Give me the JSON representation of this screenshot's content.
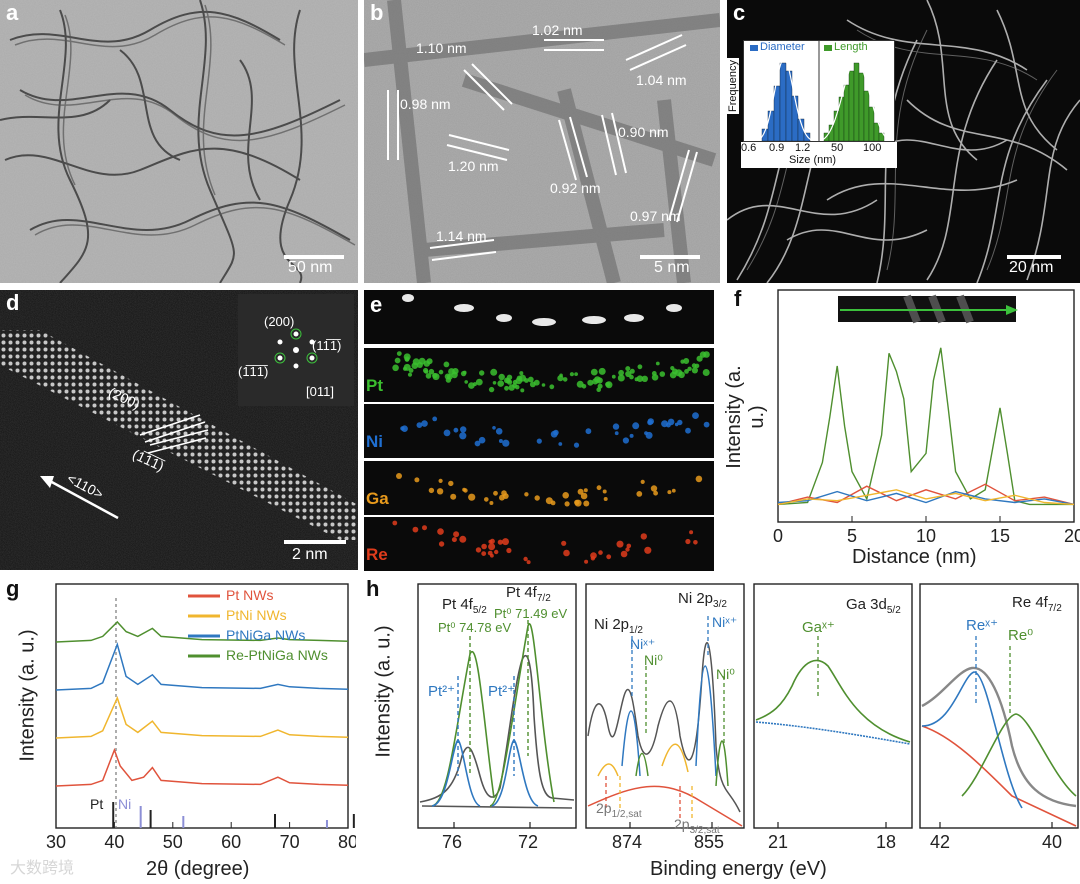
{
  "panels": {
    "a": {
      "label": "a",
      "scale": "50 nm"
    },
    "b": {
      "label": "b",
      "scale": "5 nm",
      "measurements": [
        "1.02 nm",
        "1.10 nm",
        "1.04 nm",
        "0.98 nm",
        "0.90 nm",
        "1.20 nm",
        "0.92 nm",
        "0.97 nm",
        "1.14 nm"
      ]
    },
    "c": {
      "label": "c",
      "scale": "20 nm",
      "inset": {
        "ylabel": "Frequency",
        "xlabel": "Size (nm)",
        "legend_diameter": "Diameter",
        "legend_length": "Length",
        "ticks_left": [
          "0.6",
          "0.9",
          "1.2"
        ],
        "ticks_right": [
          "50",
          "100"
        ],
        "color_diameter": "#2b6cc4",
        "color_length": "#3f9a2a"
      }
    },
    "d": {
      "label": "d",
      "scale": "2 nm",
      "fft": {
        "top": "(200)",
        "right": "(11̅1̅)",
        "left": "(1̅1̅1̅)",
        "zone": "[011]"
      },
      "annotations": {
        "plane1": "(200)",
        "plane2": "(1̅1̅1̅)",
        "direction": "<110>"
      }
    },
    "e": {
      "label": "e",
      "elements": [
        {
          "name": "Pt",
          "color": "#3bbf2f"
        },
        {
          "name": "Ni",
          "color": "#1f6fd1"
        },
        {
          "name": "Ga",
          "color": "#e89a1c"
        },
        {
          "name": "Re",
          "color": "#e03c1c"
        }
      ]
    },
    "f": {
      "label": "f",
      "xlabel": "Distance (nm)",
      "ylabel": "Intensity (a. u.)",
      "xticks": [
        "0",
        "5",
        "10",
        "15",
        "20"
      ]
    },
    "g": {
      "label": "g",
      "xlabel": "2θ (degree)",
      "ylabel": "Intensity (a. u.)",
      "xticks": [
        "30",
        "40",
        "50",
        "60",
        "70",
        "80"
      ],
      "legend": [
        {
          "name": "Pt NWs",
          "color": "#e0533c"
        },
        {
          "name": "PtNi NWs",
          "color": "#f0b62e"
        },
        {
          "name": "PtNiGa NWs",
          "color": "#2f78c0"
        },
        {
          "name": "Re-PtNiGa NWs",
          "color": "#4f8f2f"
        }
      ],
      "ref_pt": "Pt",
      "ref_ni": "Ni"
    },
    "h": {
      "label": "h",
      "xlabel": "Binding energy (eV)",
      "ylabel": "Intensity (a. u.)",
      "pt": {
        "title_a": "Pt 4f",
        "sub_a": "5/2",
        "title_b": "Pt 4f",
        "sub_b": "7/2",
        "peak1": "Pt⁰ 74.78 eV",
        "peak2": "Pt⁰ 71.49 eV",
        "pt2a": "Pt²⁺",
        "pt2b": "Pt²⁺",
        "xticks": [
          "76",
          "72"
        ]
      },
      "ni": {
        "title_a": "Ni 2p",
        "sub_a": "1/2",
        "title_b": "Ni 2p",
        "sub_b": "3/2",
        "nix1": "Niˣ⁺",
        "ni01": "Ni⁰",
        "nix2": "Niˣ⁺",
        "ni02": "Ni⁰",
        "sat1": "2p",
        "sat1sub": "1/2,sat",
        "sat2": "2p",
        "sat2sub": "3/2,sat",
        "xticks": [
          "874",
          "855"
        ]
      },
      "ga": {
        "title": "Ga 3d",
        "sub": "5/2",
        "peak": "Gaˣ⁺",
        "xticks": [
          "21",
          "18"
        ]
      },
      "re": {
        "title": "Re 4f",
        "sub": "7/2",
        "rex": "Reˣ⁺",
        "re0": "Re⁰",
        "xticks": [
          "42",
          "40"
        ]
      }
    }
  },
  "watermark": "大数跨境",
  "chart_data": [
    {
      "type": "line",
      "title": "",
      "xlabel": "Distance (nm)",
      "ylabel": "Intensity (a. u.)",
      "xlim": [
        0,
        20
      ],
      "series": [
        {
          "name": "",
          "color": "#4f8f2f",
          "x": [
            0,
            2,
            3,
            3.5,
            4,
            4.5,
            5,
            6,
            7,
            7.5,
            8,
            8.5,
            9,
            10,
            10.5,
            11,
            11.5,
            12,
            13,
            14,
            15,
            15.5,
            16,
            17,
            18,
            19,
            20
          ],
          "y": [
            0.02,
            0.03,
            0.25,
            0.5,
            0.78,
            0.45,
            0.2,
            0.05,
            0.4,
            0.85,
            0.75,
            0.6,
            0.2,
            0.3,
            0.7,
            0.88,
            0.55,
            0.2,
            0.05,
            0.1,
            0.55,
            0.3,
            0.04,
            0.02,
            0.02,
            0.02,
            0.02
          ]
        },
        {
          "name": "",
          "color": "#e0533c",
          "x": [
            0,
            2,
            4,
            6,
            8,
            10,
            12,
            14,
            16,
            18,
            20
          ],
          "y": [
            0.02,
            0.06,
            0.03,
            0.12,
            0.04,
            0.1,
            0.05,
            0.13,
            0.04,
            0.06,
            0.02
          ]
        },
        {
          "name": "",
          "color": "#2f78c0",
          "x": [
            0,
            2,
            4,
            6,
            8,
            10,
            12,
            14,
            16,
            18,
            20
          ],
          "y": [
            0.03,
            0.04,
            0.09,
            0.04,
            0.08,
            0.03,
            0.09,
            0.05,
            0.03,
            0.05,
            0.02
          ]
        },
        {
          "name": "",
          "color": "#f0b62e",
          "x": [
            0,
            2,
            4,
            6,
            8,
            10,
            12,
            14,
            16,
            18,
            20
          ],
          "y": [
            0.02,
            0.05,
            0.04,
            0.07,
            0.1,
            0.05,
            0.08,
            0.04,
            0.07,
            0.03,
            0.02
          ]
        }
      ]
    },
    {
      "type": "line",
      "title": "",
      "xlabel": "2θ (degree)",
      "ylabel": "Intensity (a. u.)",
      "xlim": [
        30,
        80
      ],
      "series": [
        {
          "name": "Pt NWs",
          "x": [
            30,
            36,
            38,
            40,
            41,
            43,
            45,
            46.5,
            48,
            55,
            65,
            68,
            70,
            75,
            80
          ],
          "y": [
            0.05,
            0.07,
            0.12,
            0.5,
            0.3,
            0.12,
            0.16,
            0.28,
            0.12,
            0.08,
            0.07,
            0.16,
            0.09,
            0.07,
            0.06
          ]
        },
        {
          "name": "PtNi NWs",
          "x": [
            30,
            36,
            38,
            40.5,
            42,
            44,
            46.5,
            48,
            55,
            65,
            68,
            70,
            75,
            80
          ],
          "y": [
            0.05,
            0.07,
            0.14,
            0.55,
            0.22,
            0.12,
            0.26,
            0.12,
            0.08,
            0.07,
            0.15,
            0.09,
            0.07,
            0.06
          ]
        },
        {
          "name": "PtNiGa NWs",
          "x": [
            30,
            36,
            38,
            40.5,
            42,
            44,
            46.5,
            48,
            55,
            65,
            68,
            70,
            75,
            80
          ],
          "y": [
            0.05,
            0.07,
            0.14,
            0.62,
            0.22,
            0.12,
            0.24,
            0.12,
            0.08,
            0.07,
            0.12,
            0.09,
            0.07,
            0.06
          ]
        },
        {
          "name": "Re-PtNiGa NWs",
          "x": [
            30,
            36,
            38,
            40.5,
            42,
            44,
            46.5,
            48,
            55,
            65,
            68,
            70,
            75,
            80
          ],
          "y": [
            0.05,
            0.07,
            0.12,
            0.3,
            0.18,
            0.12,
            0.22,
            0.12,
            0.08,
            0.07,
            0.1,
            0.08,
            0.07,
            0.06
          ]
        }
      ]
    }
  ]
}
